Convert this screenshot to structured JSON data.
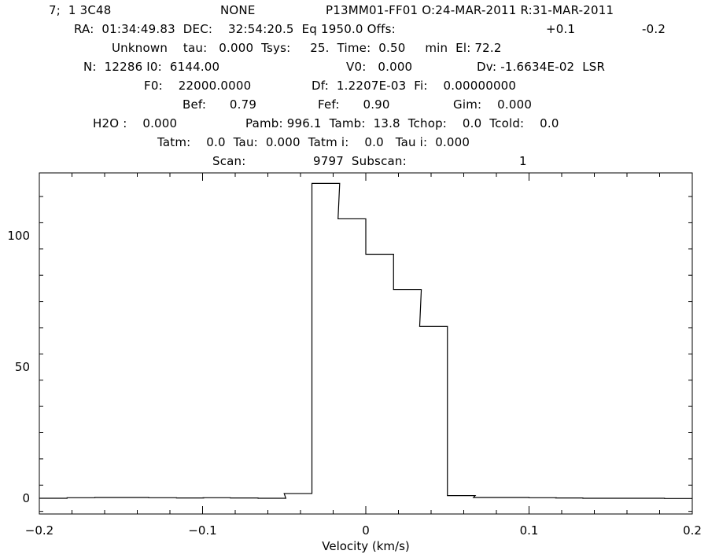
{
  "header": {
    "line1": [
      "7;  1 3C48",
      "NONE",
      "P13MM01-FF01 O:24-MAR-2011 R:31-MAR-2011"
    ],
    "line2": [
      "RA:  01:34:49.83  DEC:    32:54:20.5  Eq 1950.0 Offs:",
      "+0.1",
      "-0.2"
    ],
    "line3": [
      "Unknown    tau:   0.000  Tsys:     25.  Time:  0.50     min  El: 72.2"
    ],
    "line4": [
      "N:  12286 I0:  6144.00",
      "V0:   0.000",
      "Dv: -1.6634E-02  LSR"
    ],
    "line5": [
      "F0:    22000.0000",
      "Df:  1.2207E-03  Fi:    0.00000000"
    ],
    "line6": [
      "Bef:      0.79",
      "Fef:      0.90",
      "Gim:    0.000"
    ],
    "line7": [
      "H2O :    0.000",
      "Pamb: 996.1  Tamb:  13.8  Tchop:    0.0  Tcold:    0.0"
    ],
    "line8": [
      "Tatm:    0.0  Tau:  0.000  Tatm i:    0.0   Tau i:  0.000"
    ],
    "line9": [
      "Scan:",
      "9797  Subscan:",
      "1"
    ]
  },
  "chart_data": {
    "type": "line",
    "step": true,
    "title": "",
    "xlabel": "Velocity (km/s)",
    "ylabel": "",
    "xlim": [
      -0.2,
      0.2
    ],
    "ylim": [
      -6,
      124
    ],
    "xticks": [
      -0.2,
      -0.1,
      0,
      0.1,
      0.2
    ],
    "xtick_labels": [
      "−0.2",
      "−0.1",
      "0",
      "0.1",
      "0.2"
    ],
    "yticks": [
      0,
      50,
      100
    ],
    "ytick_labels": [
      "0",
      "50",
      "100"
    ],
    "grid": false,
    "x": [
      -0.2,
      -0.183,
      -0.166,
      -0.15,
      -0.133,
      -0.116,
      -0.1,
      -0.083,
      -0.066,
      -0.05,
      -0.033,
      -0.017,
      0.0,
      0.017,
      0.033,
      0.05,
      0.066,
      0.083,
      0.1,
      0.116,
      0.133,
      0.15,
      0.166,
      0.183
    ],
    "values": [
      0.0,
      0.2,
      0.3,
      0.3,
      0.2,
      0.1,
      0.2,
      0.1,
      0.0,
      1.8,
      120.0,
      106.5,
      93.0,
      79.5,
      65.5,
      1.0,
      0.3,
      0.3,
      0.2,
      0.1,
      0.0,
      0.0,
      0.0,
      -0.1
    ]
  }
}
